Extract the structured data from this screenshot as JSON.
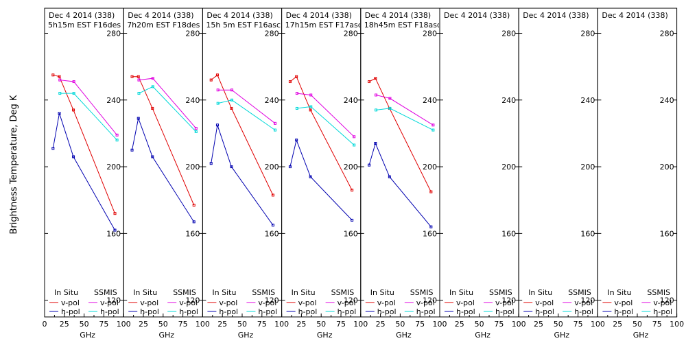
{
  "figure": {
    "ylabel": "Brightness Temperature, Deg K",
    "xlabel": "GHz"
  },
  "legend": {
    "insitu_header": "In Situ",
    "ssmis_header": "SSMIS",
    "vpol": "v-pol",
    "hpol": "h-pol",
    "colors": {
      "insitu_v": "#e00000",
      "insitu_h": "#0000b0",
      "ssmis_v": "#e000e0",
      "ssmis_h": "#00d8d8"
    }
  },
  "axes": {
    "x_ticks": [
      0,
      25,
      50,
      75,
      100
    ],
    "x_tick_labels": [
      "0",
      "25",
      "50",
      "75",
      "100"
    ],
    "y_ticks": [
      120,
      160,
      200,
      240,
      280
    ],
    "y_tick_labels": [
      "120",
      "160",
      "200",
      "240",
      "280"
    ],
    "xlim": [
      0,
      100
    ],
    "ylim": [
      110,
      295
    ]
  },
  "chart_data": [
    {
      "type": "line",
      "title": "Dec 4 2014 (338)",
      "subtitle": "5h15m EST F16des",
      "series": [
        {
          "name": "In Situ v-pol",
          "x": [
            10.7,
            18.7,
            36.5,
            89
          ],
          "y": [
            255,
            254,
            234,
            172
          ]
        },
        {
          "name": "In Situ h-pol",
          "x": [
            10.7,
            18.7,
            36.5,
            89
          ],
          "y": [
            211,
            232,
            206,
            162
          ]
        },
        {
          "name": "SSMIS v-pol",
          "x": [
            19.35,
            37,
            91.655
          ],
          "y": [
            252,
            251,
            219
          ]
        },
        {
          "name": "SSMIS h-pol",
          "x": [
            19.35,
            37,
            91.655
          ],
          "y": [
            244,
            244,
            216
          ]
        }
      ]
    },
    {
      "type": "line",
      "title": "Dec 4 2014 (338)",
      "subtitle": "7h20m EST F18des",
      "series": [
        {
          "name": "In Situ v-pol",
          "x": [
            10.7,
            18.7,
            36.5,
            89
          ],
          "y": [
            254,
            254,
            235,
            177
          ]
        },
        {
          "name": "In Situ h-pol",
          "x": [
            10.7,
            18.7,
            36.5,
            89
          ],
          "y": [
            210,
            229,
            206,
            167
          ]
        },
        {
          "name": "SSMIS v-pol",
          "x": [
            19.35,
            37,
            91.655
          ],
          "y": [
            252,
            253,
            223
          ]
        },
        {
          "name": "SSMIS h-pol",
          "x": [
            19.35,
            37,
            91.655
          ],
          "y": [
            244,
            248,
            221
          ]
        }
      ]
    },
    {
      "type": "line",
      "title": "Dec 4 2014 (338)",
      "subtitle": "15h 5m EST F16asc",
      "series": [
        {
          "name": "In Situ v-pol",
          "x": [
            10.7,
            18.7,
            36.5,
            89
          ],
          "y": [
            252,
            255,
            235,
            183
          ]
        },
        {
          "name": "In Situ h-pol",
          "x": [
            10.7,
            18.7,
            36.5,
            89
          ],
          "y": [
            202,
            225,
            200,
            165
          ]
        },
        {
          "name": "SSMIS v-pol",
          "x": [
            19.35,
            37,
            91.655
          ],
          "y": [
            246,
            246,
            226
          ]
        },
        {
          "name": "SSMIS h-pol",
          "x": [
            19.35,
            37,
            91.655
          ],
          "y": [
            238,
            240,
            222
          ]
        }
      ]
    },
    {
      "type": "line",
      "title": "Dec 4 2014 (338)",
      "subtitle": "17h15m EST F17asc",
      "series": [
        {
          "name": "In Situ v-pol",
          "x": [
            10.7,
            18.7,
            36.5,
            89
          ],
          "y": [
            251,
            254,
            234,
            186
          ]
        },
        {
          "name": "In Situ h-pol",
          "x": [
            10.7,
            18.7,
            36.5,
            89
          ],
          "y": [
            200,
            216,
            194,
            168
          ]
        },
        {
          "name": "SSMIS v-pol",
          "x": [
            19.35,
            37,
            91.655
          ],
          "y": [
            244,
            243,
            218
          ]
        },
        {
          "name": "SSMIS h-pol",
          "x": [
            19.35,
            37,
            91.655
          ],
          "y": [
            235,
            236,
            213
          ]
        }
      ]
    },
    {
      "type": "line",
      "title": "Dec 4 2014 (338)",
      "subtitle": "18h45m EST F18asc",
      "series": [
        {
          "name": "In Situ v-pol",
          "x": [
            10.7,
            18.7,
            36.5,
            89
          ],
          "y": [
            251,
            253,
            235,
            185
          ]
        },
        {
          "name": "In Situ h-pol",
          "x": [
            10.7,
            18.7,
            36.5,
            89
          ],
          "y": [
            201,
            214,
            194,
            164
          ]
        },
        {
          "name": "SSMIS v-pol",
          "x": [
            19.35,
            37,
            91.655
          ],
          "y": [
            243,
            241,
            225
          ]
        },
        {
          "name": "SSMIS h-pol",
          "x": [
            19.35,
            37,
            91.655
          ],
          "y": [
            234,
            235,
            222
          ]
        }
      ]
    },
    {
      "type": "line",
      "title": "Dec 4 2014 (338)",
      "subtitle": "",
      "series": []
    },
    {
      "type": "line",
      "title": "Dec 4 2014 (338)",
      "subtitle": "",
      "series": []
    },
    {
      "type": "line",
      "title": "Dec 4 2014 (338)",
      "subtitle": "",
      "series": []
    }
  ]
}
